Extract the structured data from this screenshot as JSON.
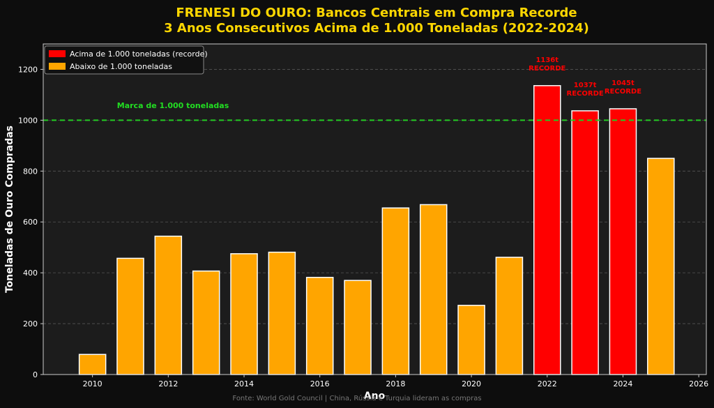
{
  "chart_data": {
    "type": "bar",
    "title": "FRENESI DO OURO: Bancos Centrais em Compra Recorde",
    "subtitle": "3 Anos Consecutivos Acima de 1.000 Toneladas (2022-2024)",
    "xlabel": "Ano",
    "ylabel": "Toneladas de Ouro Compradas",
    "x": [
      2010,
      2011,
      2012,
      2013,
      2014,
      2015,
      2016,
      2017,
      2018,
      2019,
      2020,
      2021,
      2022,
      2023,
      2024,
      2025
    ],
    "values": [
      79,
      457,
      544,
      407,
      475,
      481,
      382,
      370,
      655,
      668,
      272,
      461,
      1136,
      1037,
      1045,
      850
    ],
    "xlim": [
      2008.7,
      2026.2
    ],
    "ylim": [
      0,
      1300
    ],
    "xticks": [
      "2010",
      "2012",
      "2014",
      "2016",
      "2018",
      "2020",
      "2022",
      "2024",
      "2026"
    ],
    "yticks": [
      "0",
      "200",
      "400",
      "600",
      "800",
      "1000",
      "1200"
    ],
    "threshold": 1000,
    "threshold_label": "Marca de 1.000 toneladas",
    "legend": {
      "position": "top-left",
      "items": [
        {
          "label": "Acima de 1.000 toneladas (recorde)",
          "color": "#ff0000"
        },
        {
          "label": "Abaixo de 1.000 toneladas",
          "color": "#ffa500"
        }
      ]
    },
    "annotations": [
      {
        "x": 2022,
        "line1": "1136t",
        "line2": "RECORDE"
      },
      {
        "x": 2023,
        "line1": "1037t",
        "line2": "RECORDE"
      },
      {
        "x": 2024,
        "line1": "1045t",
        "line2": "RECORDE"
      }
    ],
    "colors": {
      "above": "#ff0000",
      "below": "#ffa500",
      "threshold_line": "#22cc22",
      "bar_edge": "#ffffff"
    },
    "grid": true,
    "source": "Fonte: World Gold Council | China, Rússia e Turquia lideram as compras"
  }
}
